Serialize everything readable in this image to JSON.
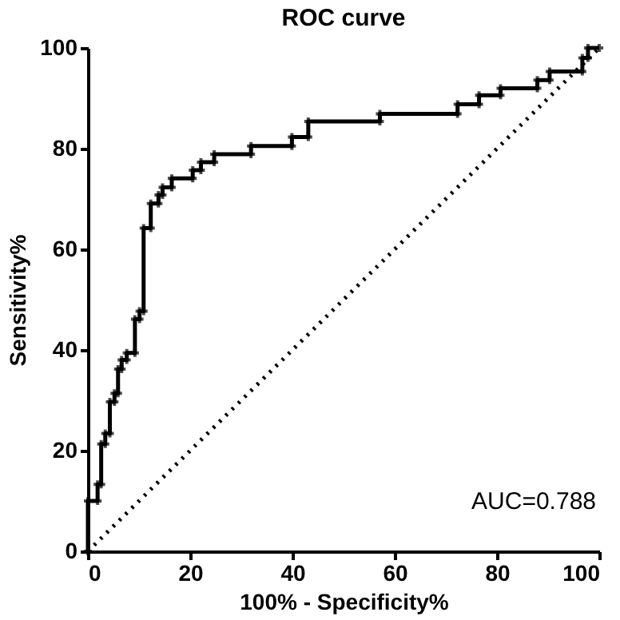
{
  "chart_data": {
    "type": "line",
    "title": "ROC curve",
    "xlabel": "100% - Specificity%",
    "ylabel": "Sensitivity%",
    "xlim": [
      0,
      100
    ],
    "ylim": [
      0,
      100
    ],
    "xticks": [
      0,
      20,
      40,
      60,
      80,
      100
    ],
    "yticks": [
      0,
      20,
      40,
      60,
      80,
      100
    ],
    "annotations": [
      "AUC=0.788"
    ],
    "series": [
      {
        "color": "#000000",
        "marker": "cross",
        "line_style": "solid",
        "x": [
          0,
          0,
          1.9,
          1.9,
          2.6,
          2.6,
          3.4,
          3.4,
          4.3,
          4.3,
          5.2,
          5.2,
          5.9,
          5.9,
          6.6,
          6.6,
          7.6,
          7.6,
          9.2,
          9.2,
          10.1,
          10.1,
          10.9,
          10.9,
          12.3,
          12.3,
          13.8,
          13.8,
          14.6,
          14.6,
          16.4,
          16.4,
          20.5,
          20.5,
          22.1,
          22.1,
          24.7,
          24.7,
          31.9,
          31.9,
          39.9,
          39.9,
          43.1,
          43.1,
          57.1,
          57.1,
          72.3,
          72.3,
          76.5,
          76.5,
          80.7,
          80.7,
          87.9,
          87.9,
          90.3,
          90.3,
          96.7,
          96.7,
          97.8,
          97.8,
          100
        ],
        "values": [
          0,
          10,
          10,
          13.3,
          13.3,
          21.3,
          21.3,
          23.4,
          23.4,
          29.7,
          29.7,
          31.4,
          31.4,
          36.2,
          36.2,
          38,
          38,
          39.4,
          39.4,
          46.1,
          46.1,
          47.7,
          47.7,
          64.2,
          64.2,
          69.1,
          69.1,
          70.8,
          70.8,
          72.3,
          72.3,
          74.1,
          74.1,
          75.7,
          75.7,
          77.3,
          77.3,
          78.9,
          78.9,
          80.5,
          80.5,
          82.3,
          82.3,
          85.4,
          85.4,
          86.9,
          86.9,
          88.8,
          88.8,
          90.6,
          90.6,
          92,
          92,
          93.6,
          93.6,
          95.3,
          95.3,
          98,
          98,
          100,
          100
        ]
      },
      {
        "color": "#000000",
        "marker": "none",
        "line_style": "dotted",
        "x": [
          0,
          100
        ],
        "values": [
          0,
          100
        ]
      }
    ]
  }
}
